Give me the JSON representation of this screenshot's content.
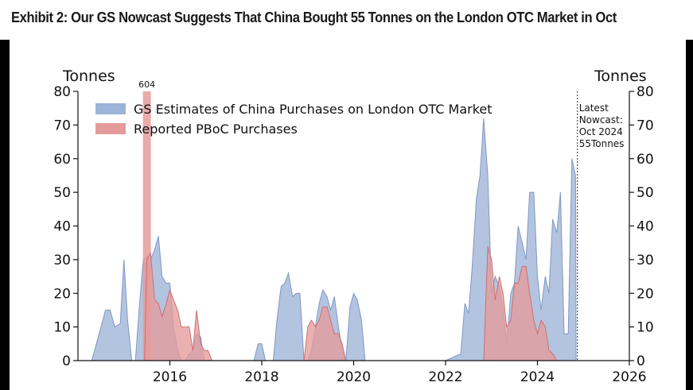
{
  "header": {
    "title": "Exhibit 2: Our GS Nowcast Suggests That China Bought 55 Tonnes on the London OTC Market in Oct"
  },
  "chart_data": {
    "type": "area",
    "title": "Exhibit 2: Our GS Nowcast Suggests That China Bought 55 Tonnes on the London OTC Market in Oct",
    "ylabel_left": "Tonnes",
    "ylabel_right": "Tonnes",
    "ylim": [
      0,
      80
    ],
    "xlim": [
      2014.0,
      2026.0
    ],
    "x_ticks": [
      2016,
      2018,
      2020,
      2022,
      2024,
      2026
    ],
    "y_ticks": [
      0,
      10,
      20,
      30,
      40,
      50,
      60,
      70,
      80
    ],
    "legend_location": "top-left",
    "series": [
      {
        "name": "GS Estimates of China Purchases on London OTC Market",
        "color": "#9db3d8",
        "edge_color": "#7f98c4",
        "points": [
          [
            2014.3,
            0
          ],
          [
            2014.5,
            10
          ],
          [
            2014.6,
            15
          ],
          [
            2014.7,
            15
          ],
          [
            2014.8,
            10
          ],
          [
            2014.92,
            11
          ],
          [
            2015.0,
            30
          ],
          [
            2015.08,
            12
          ],
          [
            2015.17,
            0
          ],
          [
            2015.25,
            0
          ],
          [
            2015.33,
            15
          ],
          [
            2015.42,
            30
          ],
          [
            2015.5,
            31
          ],
          [
            2015.58,
            30
          ],
          [
            2015.67,
            33
          ],
          [
            2015.75,
            37
          ],
          [
            2015.83,
            25
          ],
          [
            2015.92,
            23
          ],
          [
            2016.0,
            23
          ],
          [
            2016.08,
            10
          ],
          [
            2016.17,
            3
          ],
          [
            2016.25,
            0
          ],
          [
            2016.33,
            0
          ],
          [
            2016.42,
            2
          ],
          [
            2016.5,
            3
          ],
          [
            2016.58,
            8
          ],
          [
            2016.67,
            7
          ],
          [
            2016.75,
            0
          ],
          [
            2017.0,
            0
          ],
          [
            2017.5,
            0
          ],
          [
            2017.83,
            0
          ],
          [
            2017.92,
            5
          ],
          [
            2018.0,
            5
          ],
          [
            2018.08,
            0
          ],
          [
            2018.25,
            0
          ],
          [
            2018.33,
            12
          ],
          [
            2018.42,
            22
          ],
          [
            2018.5,
            23
          ],
          [
            2018.58,
            26
          ],
          [
            2018.67,
            19
          ],
          [
            2018.75,
            20
          ],
          [
            2018.83,
            20
          ],
          [
            2018.92,
            0
          ],
          [
            2019.0,
            0
          ],
          [
            2019.08,
            3
          ],
          [
            2019.25,
            17
          ],
          [
            2019.33,
            21
          ],
          [
            2019.42,
            19
          ],
          [
            2019.5,
            15
          ],
          [
            2019.58,
            19
          ],
          [
            2019.67,
            10
          ],
          [
            2019.75,
            3
          ],
          [
            2019.83,
            0
          ],
          [
            2019.92,
            16
          ],
          [
            2020.0,
            20
          ],
          [
            2020.08,
            18
          ],
          [
            2020.17,
            12
          ],
          [
            2020.25,
            0
          ],
          [
            2021.0,
            0
          ],
          [
            2022.0,
            0
          ],
          [
            2022.33,
            2
          ],
          [
            2022.42,
            17
          ],
          [
            2022.5,
            14
          ],
          [
            2022.58,
            28
          ],
          [
            2022.67,
            48
          ],
          [
            2022.75,
            55
          ],
          [
            2022.83,
            72
          ],
          [
            2022.92,
            55
          ],
          [
            2023.0,
            20
          ],
          [
            2023.08,
            25
          ],
          [
            2023.17,
            22
          ],
          [
            2023.25,
            15
          ],
          [
            2023.33,
            5
          ],
          [
            2023.42,
            20
          ],
          [
            2023.5,
            23
          ],
          [
            2023.58,
            40
          ],
          [
            2023.67,
            35
          ],
          [
            2023.75,
            30
          ],
          [
            2023.83,
            50
          ],
          [
            2023.92,
            50
          ],
          [
            2024.0,
            25
          ],
          [
            2024.08,
            15
          ],
          [
            2024.17,
            25
          ],
          [
            2024.25,
            20
          ],
          [
            2024.33,
            42
          ],
          [
            2024.42,
            38
          ],
          [
            2024.5,
            50
          ],
          [
            2024.58,
            8
          ],
          [
            2024.67,
            8
          ],
          [
            2024.75,
            60
          ],
          [
            2024.83,
            55
          ],
          [
            2024.84,
            0
          ]
        ]
      },
      {
        "name": "Reported PBoC Purchases",
        "color": "#e59b9b",
        "edge_color": "#cc7070",
        "points": [
          [
            2015.45,
            0
          ],
          [
            2015.5,
            30
          ],
          [
            2015.58,
            32
          ],
          [
            2015.67,
            18
          ],
          [
            2015.75,
            17
          ],
          [
            2015.83,
            13
          ],
          [
            2015.92,
            17
          ],
          [
            2016.0,
            21
          ],
          [
            2016.08,
            18
          ],
          [
            2016.17,
            15
          ],
          [
            2016.25,
            10
          ],
          [
            2016.33,
            10
          ],
          [
            2016.42,
            10
          ],
          [
            2016.5,
            3
          ],
          [
            2016.58,
            15
          ],
          [
            2016.67,
            5
          ],
          [
            2016.75,
            3
          ],
          [
            2016.83,
            3
          ],
          [
            2016.92,
            0
          ],
          [
            2018.92,
            0
          ],
          [
            2019.0,
            10
          ],
          [
            2019.08,
            12
          ],
          [
            2019.17,
            10
          ],
          [
            2019.25,
            12
          ],
          [
            2019.33,
            16
          ],
          [
            2019.42,
            16
          ],
          [
            2019.5,
            12
          ],
          [
            2019.58,
            8
          ],
          [
            2019.67,
            8
          ],
          [
            2019.75,
            5
          ],
          [
            2019.83,
            0
          ],
          [
            2022.83,
            0
          ],
          [
            2022.92,
            34
          ],
          [
            2023.0,
            30
          ],
          [
            2023.08,
            18
          ],
          [
            2023.17,
            25
          ],
          [
            2023.25,
            20
          ],
          [
            2023.33,
            10
          ],
          [
            2023.42,
            12
          ],
          [
            2023.5,
            23
          ],
          [
            2023.58,
            23
          ],
          [
            2023.67,
            28
          ],
          [
            2023.75,
            28
          ],
          [
            2023.83,
            20
          ],
          [
            2023.92,
            12
          ],
          [
            2024.0,
            8
          ],
          [
            2024.08,
            12
          ],
          [
            2024.17,
            10
          ],
          [
            2024.25,
            3
          ],
          [
            2024.33,
            2
          ],
          [
            2024.42,
            0
          ]
        ]
      }
    ],
    "special_bar": {
      "x": 2015.5,
      "value": 604,
      "label": "604",
      "color": "#e59b9b"
    },
    "latest_marker": {
      "x": 2024.87,
      "label_lines": [
        "Latest",
        "Nowcast:",
        "Oct 2024",
        "55Tonnes"
      ]
    }
  }
}
